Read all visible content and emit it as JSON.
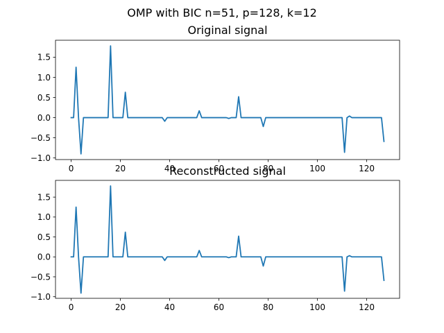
{
  "figure": {
    "suptitle": "OMP with BIC n=51, p=128, k=12"
  },
  "chart_data": [
    {
      "type": "line",
      "title": "Original signal",
      "xlim": [
        -6.35,
        133.35
      ],
      "ylim": [
        -1.04,
        1.92
      ],
      "xticks": [
        0,
        20,
        40,
        60,
        80,
        100,
        120
      ],
      "yticks": [
        -1.0,
        -0.5,
        0.0,
        0.5,
        1.0,
        1.5
      ],
      "xtick_labels": [
        "0",
        "20",
        "40",
        "60",
        "80",
        "100",
        "120"
      ],
      "ytick_labels": [
        "−1.0",
        "−0.5",
        "0.0",
        "0.5",
        "1.0",
        "1.5"
      ],
      "length": 128,
      "spikes": [
        [
          2,
          1.25
        ],
        [
          4,
          -0.9
        ],
        [
          16,
          1.78
        ],
        [
          22,
          0.63
        ],
        [
          38,
          -0.09
        ],
        [
          52,
          0.17
        ],
        [
          64,
          -0.02
        ],
        [
          68,
          0.52
        ],
        [
          78,
          -0.22
        ],
        [
          111,
          -0.86
        ],
        [
          113,
          0.04
        ],
        [
          127,
          -0.59
        ]
      ]
    },
    {
      "type": "line",
      "title": "Reconstructed signal",
      "xlim": [
        -6.35,
        133.35
      ],
      "ylim": [
        -1.04,
        1.92
      ],
      "xticks": [
        0,
        20,
        40,
        60,
        80,
        100,
        120
      ],
      "yticks": [
        -1.0,
        -0.5,
        0.0,
        0.5,
        1.0,
        1.5
      ],
      "xtick_labels": [
        "0",
        "20",
        "40",
        "60",
        "80",
        "100",
        "120"
      ],
      "ytick_labels": [
        "−1.0",
        "−0.5",
        "0.0",
        "0.5",
        "1.0",
        "1.5"
      ],
      "length": 128,
      "spikes": [
        [
          2,
          1.25
        ],
        [
          4,
          -0.91
        ],
        [
          16,
          1.78
        ],
        [
          22,
          0.62
        ],
        [
          38,
          -0.09
        ],
        [
          52,
          0.16
        ],
        [
          64,
          -0.02
        ],
        [
          68,
          0.52
        ],
        [
          78,
          -0.23
        ],
        [
          111,
          -0.86
        ],
        [
          113,
          0.03
        ],
        [
          127,
          -0.59
        ]
      ]
    }
  ]
}
